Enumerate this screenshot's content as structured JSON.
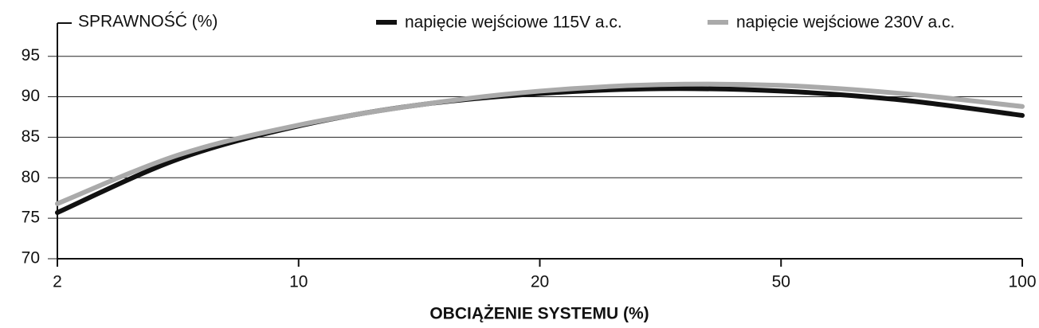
{
  "chart_data": {
    "type": "line",
    "title": "SPRAWNOŚĆ (%)",
    "x_label": "OBCIĄŻENIE SYSTEMU (%)",
    "categories": [
      "2",
      null,
      "10",
      null,
      "20",
      null,
      "50",
      null,
      "100"
    ],
    "series": [
      {
        "name": "napięcie wejściowe 115V a.c.",
        "color": "#111111",
        "values": [
          75.7,
          82.3,
          86.4,
          89.0,
          90.4,
          91.0,
          90.7,
          89.6,
          87.7
        ]
      },
      {
        "name": "napięcie wejściowe 230V a.c.",
        "color": "#aaaaaa",
        "values": [
          76.8,
          82.8,
          86.5,
          89.0,
          90.7,
          91.5,
          91.4,
          90.4,
          88.8
        ]
      }
    ],
    "ylim": [
      70,
      99
    ],
    "yticks": [
      70,
      75,
      80,
      85,
      90,
      95
    ],
    "grid": true
  }
}
